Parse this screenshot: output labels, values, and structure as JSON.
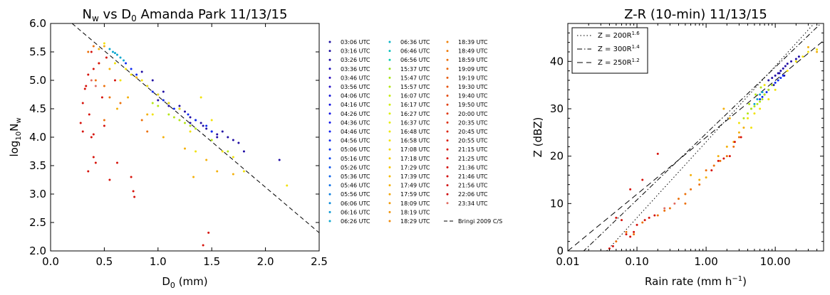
{
  "chart_data": [
    {
      "type": "scatter",
      "title": "N_w vs D_0 Amanda Park 11/13/15",
      "title_parts": {
        "a": "N",
        "b": "w",
        "c": " vs D",
        "d": "0",
        "e": " Amanda Park 11/13/15"
      },
      "xlabel": {
        "main": "D",
        "sub": "0",
        "rest": " (mm)"
      },
      "ylabel": {
        "pre": "log",
        "sub1": "10",
        "mid": "N",
        "sub2": "w"
      },
      "xlim": [
        0.0,
        2.5
      ],
      "ylim": [
        2.0,
        6.0
      ],
      "xticks": [
        "0.0",
        "0.5",
        "1.0",
        "1.5",
        "2.0",
        "2.5"
      ],
      "yticks": [
        "2.0",
        "2.5",
        "3.0",
        "3.5",
        "4.0",
        "4.5",
        "5.0",
        "5.5",
        "6.0"
      ],
      "legend_position": "outside-right",
      "series_times": [
        "03:06 UTC",
        "03:16 UTC",
        "03:26 UTC",
        "03:36 UTC",
        "03:46 UTC",
        "03:56 UTC",
        "04:06 UTC",
        "04:16 UTC",
        "04:26 UTC",
        "04:36 UTC",
        "04:46 UTC",
        "04:56 UTC",
        "05:06 UTC",
        "05:16 UTC",
        "05:26 UTC",
        "05:36 UTC",
        "05:46 UTC",
        "05:56 UTC",
        "06:06 UTC",
        "06:16 UTC",
        "06:26 UTC",
        "06:36 UTC",
        "06:46 UTC",
        "06:56 UTC",
        "15:37 UTC",
        "15:47 UTC",
        "15:57 UTC",
        "16:07 UTC",
        "16:17 UTC",
        "16:27 UTC",
        "16:37 UTC",
        "16:48 UTC",
        "16:58 UTC",
        "17:08 UTC",
        "17:18 UTC",
        "17:29 UTC",
        "17:39 UTC",
        "17:49 UTC",
        "17:59 UTC",
        "18:09 UTC",
        "18:19 UTC",
        "18:29 UTC",
        "18:39 UTC",
        "18:49 UTC",
        "18:59 UTC",
        "19:09 UTC",
        "19:19 UTC",
        "19:30 UTC",
        "19:40 UTC",
        "19:50 UTC",
        "20:00 UTC",
        "20:35 UTC",
        "20:45 UTC",
        "20:55 UTC",
        "21:15 UTC",
        "21:25 UTC",
        "21:36 UTC",
        "21:46 UTC",
        "21:56 UTC",
        "22:06 UTC",
        "23:34 UTC"
      ],
      "series_colors": [
        "#1a0c9e",
        "#1c0c9e",
        "#1f0ca4",
        "#1a0cb8",
        "#2a0cc0",
        "#2510c8",
        "#1212d6",
        "#1010e0",
        "#0f0fe6",
        "#0f14ea",
        "#0e1ef0",
        "#0c28f0",
        "#0a36f0",
        "#0a44ee",
        "#0a52ec",
        "#0a60ea",
        "#0a6ee6",
        "#0a7ee0",
        "#0a8ada",
        "#0a98d4",
        "#0aa6ce",
        "#0ab4c6",
        "#0ac0bc",
        "#0accb0",
        "#9be01e",
        "#a8e418",
        "#b4e616",
        "#c4ea12",
        "#d0ee10",
        "#dcf00e",
        "#e6ee0c",
        "#eeea0a",
        "#f2e20a",
        "#f4d80a",
        "#f6ce0a",
        "#f6c40a",
        "#f6ba0a",
        "#f4b00a",
        "#f2a60a",
        "#f29c0a",
        "#f0940a",
        "#f08a0a",
        "#f0820a",
        "#ee7a0a",
        "#ec700a",
        "#ea660a",
        "#e85c0a",
        "#e6520a",
        "#e4480a",
        "#e23e0a",
        "#e0340a",
        "#de2c0a",
        "#dc240a",
        "#da1e0a",
        "#d8180a",
        "#d6120a",
        "#d40e0a",
        "#d20a0a",
        "#d0080a",
        "#ce060a",
        "#e06a60"
      ],
      "reference_line": {
        "name": "Bringi 2009 C/S",
        "x": [
          0.2,
          2.5
        ],
        "y": [
          6.0,
          2.32
        ]
      },
      "groups": [
        {
          "color": "#1f0ca4",
          "x": [
            0.85,
            0.95,
            1.05,
            1.2,
            1.25,
            1.3,
            1.35,
            1.4,
            1.45,
            1.5,
            1.55,
            1.6,
            1.65,
            1.7,
            1.75,
            1.8,
            2.13,
            1.0,
            1.1,
            1.3,
            1.42,
            1.55
          ],
          "y": [
            5.15,
            5.0,
            4.8,
            4.55,
            4.45,
            4.35,
            4.3,
            4.25,
            4.15,
            4.1,
            4.05,
            4.1,
            4.0,
            3.95,
            3.9,
            3.75,
            3.6,
            4.65,
            4.55,
            4.25,
            4.2,
            4.0
          ]
        },
        {
          "color": "#0c28f0",
          "x": [
            0.7,
            0.75,
            0.8,
            0.9,
            1.0,
            1.1,
            1.2,
            1.28,
            1.35,
            1.45,
            1.5,
            0.95,
            1.05,
            1.15
          ],
          "y": [
            5.3,
            5.2,
            5.1,
            4.9,
            4.75,
            4.6,
            4.5,
            4.4,
            4.3,
            4.2,
            4.1,
            4.8,
            4.65,
            4.5
          ]
        },
        {
          "color": "#0aa6ce",
          "x": [
            0.55,
            0.58,
            0.6,
            0.62,
            0.65,
            0.68
          ],
          "y": [
            5.55,
            5.5,
            5.48,
            5.45,
            5.4,
            5.35
          ]
        },
        {
          "color": "#b4e616",
          "x": [
            1.1,
            1.15,
            1.2,
            1.25,
            1.3,
            1.35,
            1.5,
            1.65,
            0.95,
            1.0
          ],
          "y": [
            4.4,
            4.35,
            4.3,
            4.25,
            4.2,
            4.15,
            3.95,
            3.75,
            4.6,
            4.55
          ]
        },
        {
          "color": "#f2e20a",
          "x": [
            0.5,
            0.6,
            0.7,
            0.75,
            0.8,
            0.85,
            0.9,
            1.0,
            1.1,
            1.2,
            1.3,
            1.4,
            1.5,
            1.6,
            1.7,
            1.8,
            2.2,
            0.65,
            0.95,
            1.35
          ],
          "y": [
            5.65,
            5.3,
            5.2,
            5.1,
            5.05,
            5.0,
            4.9,
            4.75,
            4.6,
            4.5,
            4.1,
            4.7,
            4.3,
            3.75,
            3.65,
            3.4,
            3.15,
            5.0,
            4.4,
            3.75
          ]
        },
        {
          "color": "#f4b00a",
          "x": [
            0.45,
            0.5,
            0.55,
            0.62,
            0.72,
            0.8,
            0.9,
            1.05,
            1.25,
            1.33,
            1.45,
            1.55,
            1.7
          ],
          "y": [
            5.55,
            5.6,
            5.2,
            4.5,
            4.7,
            5.05,
            4.4,
            4.0,
            3.8,
            3.3,
            3.6,
            3.4,
            3.35
          ]
        },
        {
          "color": "#ec700a",
          "x": [
            0.35,
            0.4,
            0.45,
            0.5,
            0.55,
            0.65,
            0.85,
            0.9,
            0.42,
            0.5
          ],
          "y": [
            5.5,
            5.6,
            5.3,
            4.9,
            4.7,
            4.6,
            4.3,
            4.1,
            5.0,
            4.3
          ]
        },
        {
          "color": "#d6120a",
          "x": [
            0.28,
            0.3,
            0.32,
            0.35,
            0.36,
            0.38,
            0.4,
            0.42,
            0.45,
            0.5,
            0.55,
            0.62,
            0.75,
            0.77,
            0.78,
            0.3,
            0.33,
            0.38,
            0.4,
            0.35,
            0.48,
            0.52,
            1.42,
            1.47,
            0.6,
            0.4
          ],
          "y": [
            4.25,
            4.1,
            4.85,
            5.1,
            4.4,
            4.0,
            3.65,
            3.55,
            5.3,
            4.2,
            3.25,
            3.55,
            3.3,
            3.05,
            2.95,
            4.6,
            4.9,
            5.5,
            5.2,
            3.4,
            4.7,
            5.4,
            2.1,
            2.32,
            5.0,
            4.05
          ]
        },
        {
          "color": "#e06a60",
          "x": [
            0.38,
            0.42
          ],
          "y": [
            5.0,
            4.9
          ]
        }
      ]
    },
    {
      "type": "scatter",
      "title": "Z-R (10-min) 11/13/15",
      "xlabel": {
        "main": "Rain rate (mm h",
        "sup": "−1",
        "rest": ")"
      },
      "ylabel": "Z (dBZ)",
      "xscale": "log",
      "xlim": [
        0.01,
        50
      ],
      "ylim": [
        0,
        48
      ],
      "xticks": [
        "0.01",
        "0.10",
        "1.00",
        "10.00"
      ],
      "yticks": [
        "0",
        "10",
        "20",
        "30",
        "40"
      ],
      "legend_position": "top-left",
      "legend": [
        {
          "style": "dotted",
          "pre": "Z = 200R",
          "sup": "1.6"
        },
        {
          "style": "dashdot",
          "pre": "Z = 300R",
          "sup": "1.4"
        },
        {
          "style": "dashed",
          "pre": "Z = 250R",
          "sup": "1.2"
        }
      ],
      "zr_lines": [
        {
          "a": 200,
          "b": 1.6
        },
        {
          "a": 300,
          "b": 1.4
        },
        {
          "a": 250,
          "b": 1.2
        }
      ],
      "groups": [
        {
          "color": "#1f0ca4",
          "x": [
            8,
            9,
            10,
            11,
            12,
            13,
            14,
            15,
            17,
            20,
            22,
            9.5,
            11.5,
            13.5
          ],
          "y": [
            36,
            36.5,
            37,
            37.5,
            38,
            38.5,
            39,
            39.5,
            40,
            40.5,
            41,
            35,
            37.5,
            37
          ]
        },
        {
          "color": "#0c28f0",
          "x": [
            6,
            6.5,
            7,
            7.5,
            8,
            9,
            10,
            11,
            12,
            13
          ],
          "y": [
            32,
            32.5,
            33,
            33.5,
            34,
            35,
            35.5,
            36,
            36.5,
            37
          ]
        },
        {
          "color": "#0aa6ce",
          "x": [
            4.5,
            5,
            5.5,
            6,
            6.5
          ],
          "y": [
            30,
            31,
            32,
            33,
            33.5
          ]
        },
        {
          "color": "#b4e616",
          "x": [
            3.5,
            4,
            4.5,
            5,
            5.5,
            6,
            6.5,
            7,
            8,
            9,
            4.2,
            5.2,
            6.2
          ],
          "y": [
            28,
            29,
            30,
            30.5,
            31,
            31.5,
            32,
            33,
            34,
            35,
            31,
            33,
            34.5
          ]
        },
        {
          "color": "#f2e20a",
          "x": [
            3,
            4,
            5,
            6,
            8,
            10,
            15,
            20,
            25,
            30,
            40,
            4.5,
            7
          ],
          "y": [
            27,
            28,
            29,
            30,
            32,
            34,
            38,
            40,
            41,
            42,
            42.5,
            26,
            35
          ]
        },
        {
          "color": "#f4b00a",
          "x": [
            1.5,
            2,
            2.5,
            3,
            3.5,
            0.6,
            0.8,
            1,
            2.2,
            30,
            40,
            1.8
          ],
          "y": [
            20,
            22,
            23,
            25,
            26,
            16,
            15,
            15.5,
            28,
            43,
            42,
            30
          ]
        },
        {
          "color": "#ec700a",
          "x": [
            0.3,
            0.4,
            0.5,
            0.6,
            0.8,
            1,
            1.3,
            1.6,
            2,
            2.5,
            3,
            0.07,
            0.09,
            0.12,
            0.2,
            0.25,
            0.5,
            0.05
          ],
          "y": [
            9,
            11,
            12,
            13,
            14,
            17,
            18,
            19,
            20,
            22,
            24,
            4,
            3.5,
            6,
            7.5,
            8.5,
            10,
            2
          ]
        },
        {
          "color": "#d6120a",
          "x": [
            0.04,
            0.045,
            0.05,
            0.06,
            0.07,
            0.08,
            0.09,
            0.1,
            0.12,
            0.15,
            0.18,
            0.2,
            0.13,
            0.08,
            1.2,
            1.5,
            1.8,
            2.2,
            2.6,
            3.2
          ],
          "y": [
            0.5,
            1,
            7,
            6.5,
            3.5,
            3,
            4,
            5.5,
            15,
            7,
            7.5,
            20.5,
            6.5,
            13,
            17,
            19,
            19.5,
            20,
            23,
            24
          ]
        },
        {
          "color": "#e06a60",
          "x": [
            0.25,
            0.35
          ],
          "y": [
            9,
            10
          ]
        }
      ]
    }
  ]
}
